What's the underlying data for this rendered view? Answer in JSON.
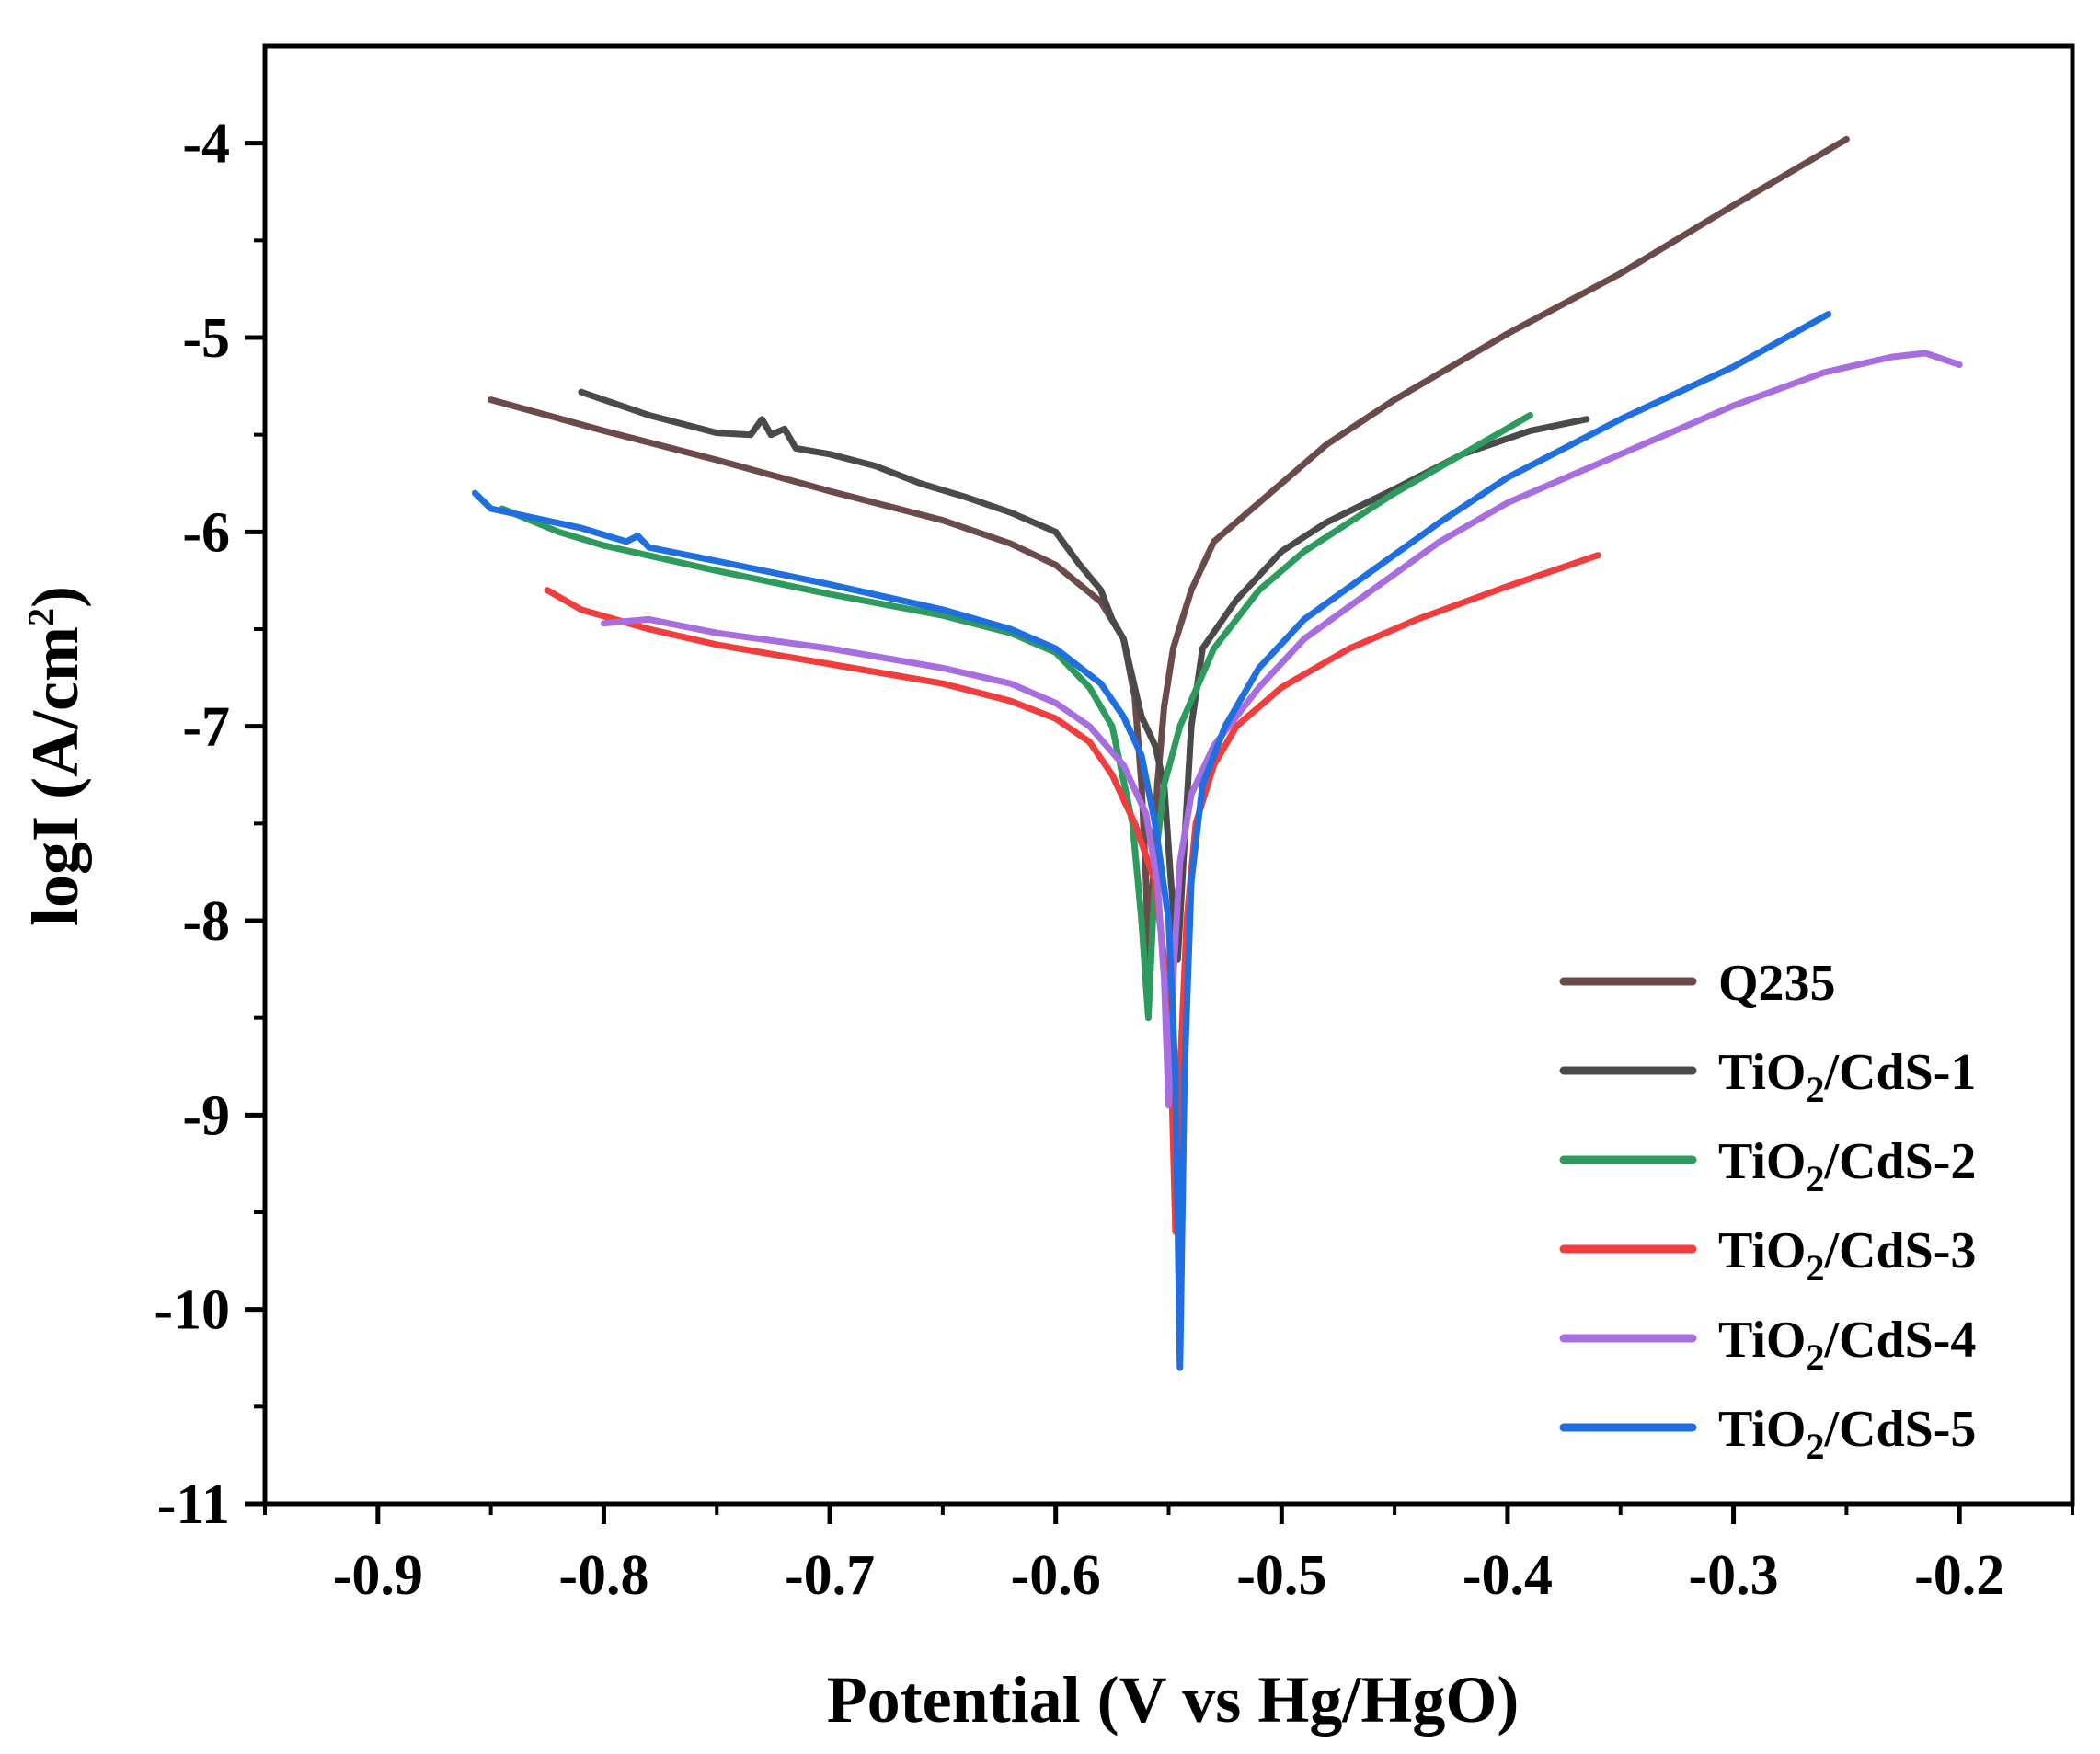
{
  "chart_data": {
    "type": "line",
    "title": "",
    "xlabel": "Potential (V vs Hg/HgO)",
    "ylabel": {
      "main": "logI (A/cm",
      "sup": "2",
      "close": ")"
    },
    "xlim": [
      -0.95,
      -0.15
    ],
    "ylim": [
      -11,
      -3.5
    ],
    "xticks": [
      -0.9,
      -0.8,
      -0.7,
      -0.6,
      -0.5,
      -0.4,
      -0.3,
      -0.2
    ],
    "xtick_labels": [
      "-0.9",
      "-0.8",
      "-0.7",
      "-0.6",
      "-0.5",
      "-0.4",
      "-0.3",
      "-0.2"
    ],
    "yticks": [
      -11,
      -10,
      -9,
      -8,
      -7,
      -6,
      -5,
      -4
    ],
    "ytick_labels": [
      "-11",
      "-10",
      "-9",
      "-8",
      "-7",
      "-6",
      "-5",
      "-4"
    ],
    "grid": false,
    "legend_position": "bottom-right",
    "series": [
      {
        "name": "Q235",
        "label_parts": [
          "Q235"
        ],
        "color": "#6b4a4a",
        "points": [
          [
            -0.85,
            -5.32
          ],
          [
            -0.8,
            -5.48
          ],
          [
            -0.75,
            -5.63
          ],
          [
            -0.7,
            -5.79
          ],
          [
            -0.65,
            -5.94
          ],
          [
            -0.62,
            -6.06
          ],
          [
            -0.6,
            -6.17
          ],
          [
            -0.58,
            -6.36
          ],
          [
            -0.57,
            -6.55
          ],
          [
            -0.565,
            -6.85
          ],
          [
            -0.562,
            -7.3
          ],
          [
            -0.56,
            -7.8
          ],
          [
            -0.559,
            -8.2
          ],
          [
            -0.557,
            -7.8
          ],
          [
            -0.555,
            -7.3
          ],
          [
            -0.552,
            -6.9
          ],
          [
            -0.548,
            -6.6
          ],
          [
            -0.54,
            -6.3
          ],
          [
            -0.53,
            -6.05
          ],
          [
            -0.51,
            -5.85
          ],
          [
            -0.48,
            -5.55
          ],
          [
            -0.45,
            -5.32
          ],
          [
            -0.4,
            -4.98
          ],
          [
            -0.35,
            -4.67
          ],
          [
            -0.3,
            -4.32
          ],
          [
            -0.25,
            -3.98
          ]
        ]
      },
      {
        "name": "TiO2/CdS-1",
        "label_parts": [
          "TiO",
          "2",
          "/CdS-1"
        ],
        "color": "#4a4a4a",
        "points": [
          [
            -0.81,
            -5.28
          ],
          [
            -0.78,
            -5.4
          ],
          [
            -0.75,
            -5.49
          ],
          [
            -0.735,
            -5.5
          ],
          [
            -0.73,
            -5.42
          ],
          [
            -0.726,
            -5.5
          ],
          [
            -0.72,
            -5.47
          ],
          [
            -0.715,
            -5.57
          ],
          [
            -0.7,
            -5.6
          ],
          [
            -0.68,
            -5.66
          ],
          [
            -0.66,
            -5.75
          ],
          [
            -0.64,
            -5.82
          ],
          [
            -0.62,
            -5.9
          ],
          [
            -0.6,
            -6.0
          ],
          [
            -0.59,
            -6.16
          ],
          [
            -0.58,
            -6.3
          ],
          [
            -0.575,
            -6.45
          ],
          [
            -0.57,
            -6.55
          ],
          [
            -0.562,
            -6.95
          ],
          [
            -0.556,
            -7.1
          ],
          [
            -0.552,
            -7.3
          ],
          [
            -0.549,
            -7.8
          ],
          [
            -0.546,
            -8.2
          ],
          [
            -0.544,
            -7.8
          ],
          [
            -0.54,
            -7.0
          ],
          [
            -0.535,
            -6.6
          ],
          [
            -0.52,
            -6.35
          ],
          [
            -0.5,
            -6.1
          ],
          [
            -0.48,
            -5.95
          ],
          [
            -0.45,
            -5.78
          ],
          [
            -0.42,
            -5.6
          ],
          [
            -0.39,
            -5.48
          ],
          [
            -0.365,
            -5.42
          ]
        ]
      },
      {
        "name": "TiO2/CdS-2",
        "label_parts": [
          "TiO",
          "2",
          "/CdS-2"
        ],
        "color": "#2e9b5e",
        "points": [
          [
            -0.845,
            -5.88
          ],
          [
            -0.82,
            -6.0
          ],
          [
            -0.8,
            -6.07
          ],
          [
            -0.75,
            -6.2
          ],
          [
            -0.7,
            -6.32
          ],
          [
            -0.65,
            -6.43
          ],
          [
            -0.62,
            -6.52
          ],
          [
            -0.6,
            -6.62
          ],
          [
            -0.585,
            -6.8
          ],
          [
            -0.575,
            -7.0
          ],
          [
            -0.566,
            -7.5
          ],
          [
            -0.562,
            -8.0
          ],
          [
            -0.559,
            -8.5
          ],
          [
            -0.557,
            -8.0
          ],
          [
            -0.555,
            -7.6
          ],
          [
            -0.552,
            -7.3
          ],
          [
            -0.545,
            -7.0
          ],
          [
            -0.53,
            -6.6
          ],
          [
            -0.51,
            -6.3
          ],
          [
            -0.49,
            -6.1
          ],
          [
            -0.47,
            -5.95
          ],
          [
            -0.45,
            -5.8
          ],
          [
            -0.42,
            -5.6
          ],
          [
            -0.39,
            -5.4
          ]
        ]
      },
      {
        "name": "TiO2/CdS-3",
        "label_parts": [
          "TiO",
          "2",
          "/CdS-3"
        ],
        "color": "#f03e3e",
        "points": [
          [
            -0.825,
            -6.3
          ],
          [
            -0.81,
            -6.4
          ],
          [
            -0.78,
            -6.5
          ],
          [
            -0.75,
            -6.58
          ],
          [
            -0.7,
            -6.68
          ],
          [
            -0.65,
            -6.78
          ],
          [
            -0.62,
            -6.87
          ],
          [
            -0.6,
            -6.96
          ],
          [
            -0.585,
            -7.08
          ],
          [
            -0.575,
            -7.25
          ],
          [
            -0.565,
            -7.5
          ],
          [
            -0.556,
            -7.8
          ],
          [
            -0.552,
            -8.2
          ],
          [
            -0.549,
            -8.7
          ],
          [
            -0.547,
            -9.6
          ],
          [
            -0.545,
            -8.8
          ],
          [
            -0.542,
            -8.0
          ],
          [
            -0.538,
            -7.5
          ],
          [
            -0.53,
            -7.2
          ],
          [
            -0.52,
            -7.0
          ],
          [
            -0.5,
            -6.8
          ],
          [
            -0.47,
            -6.6
          ],
          [
            -0.44,
            -6.45
          ],
          [
            -0.4,
            -6.28
          ],
          [
            -0.36,
            -6.12
          ]
        ]
      },
      {
        "name": "TiO2/CdS-4",
        "label_parts": [
          "TiO",
          "2",
          "/CdS-4"
        ],
        "color": "#a86ee0",
        "points": [
          [
            -0.8,
            -6.47
          ],
          [
            -0.78,
            -6.45
          ],
          [
            -0.75,
            -6.52
          ],
          [
            -0.7,
            -6.6
          ],
          [
            -0.65,
            -6.7
          ],
          [
            -0.62,
            -6.78
          ],
          [
            -0.6,
            -6.88
          ],
          [
            -0.585,
            -7.0
          ],
          [
            -0.57,
            -7.2
          ],
          [
            -0.56,
            -7.45
          ],
          [
            -0.555,
            -7.8
          ],
          [
            -0.552,
            -8.3
          ],
          [
            -0.55,
            -8.95
          ],
          [
            -0.548,
            -8.3
          ],
          [
            -0.545,
            -7.7
          ],
          [
            -0.54,
            -7.35
          ],
          [
            -0.53,
            -7.1
          ],
          [
            -0.51,
            -6.8
          ],
          [
            -0.49,
            -6.55
          ],
          [
            -0.46,
            -6.3
          ],
          [
            -0.43,
            -6.05
          ],
          [
            -0.4,
            -5.85
          ],
          [
            -0.35,
            -5.6
          ],
          [
            -0.3,
            -5.35
          ],
          [
            -0.26,
            -5.18
          ],
          [
            -0.23,
            -5.1
          ],
          [
            -0.215,
            -5.08
          ],
          [
            -0.2,
            -5.14
          ]
        ]
      },
      {
        "name": "TiO2/CdS-5",
        "label_parts": [
          "TiO",
          "2",
          "/CdS-5"
        ],
        "color": "#1f6fe0",
        "points": [
          [
            -0.857,
            -5.8
          ],
          [
            -0.85,
            -5.88
          ],
          [
            -0.83,
            -5.93
          ],
          [
            -0.81,
            -5.98
          ],
          [
            -0.79,
            -6.05
          ],
          [
            -0.785,
            -6.02
          ],
          [
            -0.78,
            -6.08
          ],
          [
            -0.75,
            -6.15
          ],
          [
            -0.7,
            -6.27
          ],
          [
            -0.65,
            -6.4
          ],
          [
            -0.62,
            -6.5
          ],
          [
            -0.6,
            -6.6
          ],
          [
            -0.58,
            -6.78
          ],
          [
            -0.57,
            -6.95
          ],
          [
            -0.562,
            -7.15
          ],
          [
            -0.556,
            -7.5
          ],
          [
            -0.55,
            -8.0
          ],
          [
            -0.547,
            -8.8
          ],
          [
            -0.545,
            -10.3
          ],
          [
            -0.543,
            -8.8
          ],
          [
            -0.54,
            -7.8
          ],
          [
            -0.535,
            -7.3
          ],
          [
            -0.525,
            -7.0
          ],
          [
            -0.51,
            -6.7
          ],
          [
            -0.49,
            -6.45
          ],
          [
            -0.46,
            -6.2
          ],
          [
            -0.43,
            -5.95
          ],
          [
            -0.4,
            -5.72
          ],
          [
            -0.35,
            -5.42
          ],
          [
            -0.3,
            -5.15
          ],
          [
            -0.258,
            -4.88
          ]
        ]
      }
    ]
  }
}
